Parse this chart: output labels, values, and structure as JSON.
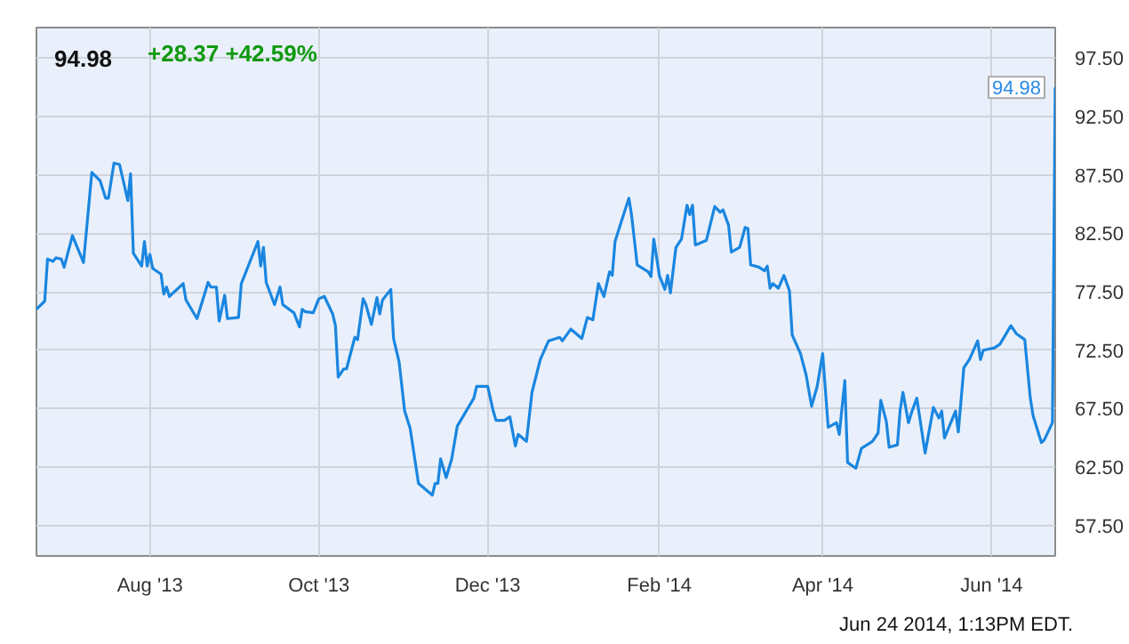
{
  "chart_data": {
    "type": "line",
    "title": "94.98",
    "subtitle": "+28.37  +42.59%",
    "xlim": [
      "2013-06-21",
      "2014-06-24"
    ],
    "xticks": [
      {
        "value": "2013-08-01",
        "label": "Aug '13"
      },
      {
        "value": "2013-10-01",
        "label": "Oct '13"
      },
      {
        "value": "2013-12-01",
        "label": "Dec '13"
      },
      {
        "value": "2014-02-01",
        "label": "Feb '14"
      },
      {
        "value": "2014-04-01",
        "label": "Apr '14"
      },
      {
        "value": "2014-06-01",
        "label": "Jun '14"
      }
    ],
    "ylim": [
      54.9,
      100.1
    ],
    "yticks": [
      {
        "value": 57.5,
        "label": "57.50"
      },
      {
        "value": 62.5,
        "label": "62.50"
      },
      {
        "value": 67.5,
        "label": "67.50"
      },
      {
        "value": 72.5,
        "label": "72.50"
      },
      {
        "value": 77.5,
        "label": "77.50"
      },
      {
        "value": 82.5,
        "label": "82.50"
      },
      {
        "value": 87.5,
        "label": "87.50"
      },
      {
        "value": 92.5,
        "label": "92.50"
      },
      {
        "value": 97.5,
        "label": "97.50"
      }
    ],
    "grid": true,
    "marker": "none",
    "line_style": "solid",
    "x": [
      "2013-06-21",
      "2013-06-24",
      "2013-06-25",
      "2013-06-27",
      "2013-06-28",
      "2013-06-30",
      "2013-07-01",
      "2013-07-04",
      "2013-07-08",
      "2013-07-11",
      "2013-07-14",
      "2013-07-16",
      "2013-07-17",
      "2013-07-19",
      "2013-07-21",
      "2013-07-24",
      "2013-07-25",
      "2013-07-26",
      "2013-07-29",
      "2013-07-30",
      "2013-07-31",
      "2013-08-01",
      "2013-08-02",
      "2013-08-05",
      "2013-08-06",
      "2013-08-07",
      "2013-08-08",
      "2013-08-13",
      "2013-08-14",
      "2013-08-18",
      "2013-08-22",
      "2013-08-23",
      "2013-08-25",
      "2013-08-26",
      "2013-08-28",
      "2013-08-29",
      "2013-09-02",
      "2013-09-03",
      "2013-09-09",
      "2013-09-10",
      "2013-09-11",
      "2013-09-12",
      "2013-09-15",
      "2013-09-17",
      "2013-09-18",
      "2013-09-22",
      "2013-09-24",
      "2013-09-25",
      "2013-09-26",
      "2013-09-29",
      "2013-10-01",
      "2013-10-03",
      "2013-10-06",
      "2013-10-07",
      "2013-10-08",
      "2013-10-10",
      "2013-10-11",
      "2013-10-14",
      "2013-10-15",
      "2013-10-17",
      "2013-10-18",
      "2013-10-20",
      "2013-10-22",
      "2013-10-23",
      "2013-10-24",
      "2013-10-27",
      "2013-10-28",
      "2013-10-30",
      "2013-11-01",
      "2013-11-03",
      "2013-11-06",
      "2013-11-10",
      "2013-11-11",
      "2013-11-12",
      "2013-11-13",
      "2013-11-14",
      "2013-11-16",
      "2013-11-18",
      "2013-11-20",
      "2013-11-23",
      "2013-11-26",
      "2013-11-27",
      "2013-12-01",
      "2013-12-03",
      "2013-12-04",
      "2013-12-07",
      "2013-12-09",
      "2013-12-11",
      "2013-12-12",
      "2013-12-15",
      "2013-12-17",
      "2013-12-20",
      "2013-12-23",
      "2013-12-27",
      "2013-12-28",
      "2013-12-31",
      "2014-01-04",
      "2014-01-06",
      "2014-01-08",
      "2014-01-10",
      "2014-01-12",
      "2014-01-14",
      "2014-01-15",
      "2014-01-16",
      "2014-01-18",
      "2014-01-21",
      "2014-01-22",
      "2014-01-24",
      "2014-01-28",
      "2014-01-29",
      "2014-01-30",
      "2014-02-01",
      "2014-02-03",
      "2014-02-04",
      "2014-02-05",
      "2014-02-07",
      "2014-02-09",
      "2014-02-11",
      "2014-02-12",
      "2014-02-13",
      "2014-02-14",
      "2014-02-18",
      "2014-02-21",
      "2014-02-23",
      "2014-02-24",
      "2014-02-26",
      "2014-02-27",
      "2014-03-02",
      "2014-03-04",
      "2014-03-05",
      "2014-03-06",
      "2014-03-09",
      "2014-03-11",
      "2014-03-12",
      "2014-03-13",
      "2014-03-14",
      "2014-03-16",
      "2014-03-18",
      "2014-03-20",
      "2014-03-21",
      "2014-03-24",
      "2014-03-26",
      "2014-03-28",
      "2014-03-30",
      "2014-04-01",
      "2014-04-03",
      "2014-04-06",
      "2014-04-07",
      "2014-04-09",
      "2014-04-10",
      "2014-04-13",
      "2014-04-15",
      "2014-04-19",
      "2014-04-21",
      "2014-04-22",
      "2014-04-24",
      "2014-04-25",
      "2014-04-28",
      "2014-04-29",
      "2014-04-30",
      "2014-05-02",
      "2014-05-03",
      "2014-05-05",
      "2014-05-08",
      "2014-05-11",
      "2014-05-13",
      "2014-05-14",
      "2014-05-15",
      "2014-05-19",
      "2014-05-20",
      "2014-05-22",
      "2014-05-24",
      "2014-05-27",
      "2014-05-28",
      "2014-05-29",
      "2014-06-02",
      "2014-06-04",
      "2014-06-08",
      "2014-06-10",
      "2014-06-13",
      "2014-06-15",
      "2014-06-16",
      "2014-06-19",
      "2014-06-20",
      "2014-06-23",
      "2014-06-24"
    ],
    "series": [
      {
        "color": "#1a86e0",
        "values": [
          76.0,
          76.7,
          80.3,
          80.1,
          80.4,
          80.3,
          79.6,
          82.3,
          80.0,
          87.7,
          87.0,
          85.5,
          85.5,
          88.5,
          88.4,
          85.3,
          87.6,
          80.8,
          79.7,
          81.8,
          79.7,
          80.7,
          79.5,
          79.0,
          77.3,
          77.9,
          77.1,
          78.2,
          76.8,
          75.2,
          78.3,
          77.9,
          77.9,
          75.0,
          77.2,
          75.2,
          75.3,
          78.2,
          81.8,
          79.7,
          81.3,
          78.3,
          76.4,
          77.9,
          76.4,
          75.7,
          74.5,
          76.0,
          75.8,
          75.7,
          76.9,
          77.1,
          75.6,
          74.6,
          70.2,
          70.9,
          70.9,
          73.6,
          73.4,
          76.9,
          76.4,
          74.7,
          77.0,
          75.6,
          76.8,
          77.7,
          73.5,
          71.5,
          67.3,
          65.8,
          61.1,
          60.3,
          60.1,
          61.1,
          61.1,
          63.2,
          61.6,
          63.2,
          66.0,
          67.2,
          68.4,
          69.4,
          69.4,
          67.3,
          66.5,
          66.5,
          66.8,
          64.3,
          65.3,
          64.7,
          68.9,
          71.7,
          73.3,
          73.6,
          73.3,
          74.3,
          73.5,
          75.3,
          75.1,
          78.2,
          77.1,
          79.2,
          78.9,
          81.8,
          83.3,
          85.5,
          84.0,
          79.8,
          79.2,
          78.8,
          82.0,
          78.9,
          77.7,
          78.9,
          77.4,
          81.3,
          82.0,
          84.9,
          84.1,
          84.9,
          81.5,
          81.9,
          84.8,
          84.3,
          84.5,
          83.2,
          80.9,
          81.3,
          83.0,
          82.9,
          79.8,
          79.6,
          79.3,
          79.7,
          77.8,
          78.2,
          77.8,
          78.9,
          77.6,
          73.8,
          72.2,
          70.4,
          67.7,
          69.4,
          72.2,
          65.9,
          66.3,
          65.3,
          69.9,
          62.9,
          62.4,
          64.1,
          64.7,
          65.4,
          68.2,
          66.4,
          64.2,
          64.4,
          67.4,
          68.9,
          66.3,
          67.1,
          68.4,
          63.7,
          67.6,
          66.7,
          67.3,
          65.0,
          67.3,
          65.5,
          71.0,
          71.7,
          73.3,
          71.7,
          72.5,
          72.7,
          73.0,
          74.6,
          73.9,
          73.4,
          68.4,
          66.9,
          64.6,
          64.8,
          66.3,
          94.98
        ]
      }
    ],
    "annotations": [
      {
        "text": "94.98",
        "x": "2014-06-24",
        "y": 94.98
      },
      "Jun 24 2014, 1:13PM EDT."
    ]
  }
}
